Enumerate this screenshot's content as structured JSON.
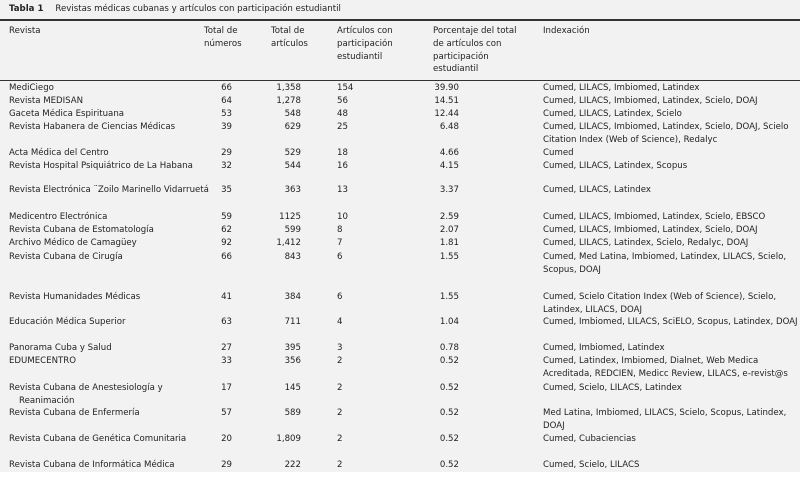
{
  "table": {
    "label": "Tabla 1",
    "caption": "Revistas médicas cubanas y artículos con participación estudiantil",
    "headers": {
      "revista": "Revista",
      "numeros": "Total de números",
      "articulos": "Total de artículos",
      "participacion": "Artículos con participación estudiantil",
      "porcentaje": "Porcentaje del total de artículos con participación estudiantil",
      "indexacion": "Indexación"
    },
    "rows": [
      {
        "revista": "MediCiego",
        "numeros": "66",
        "articulos": "1,358",
        "participacion": "154",
        "porcentaje": "39.90",
        "indexacion": "Cumed, LILACS, Imbiomed, Latindex"
      },
      {
        "revista": "Revista MEDISAN",
        "numeros": "64",
        "articulos": "1,278",
        "participacion": "56",
        "porcentaje": "14.51",
        "indexacion": "Cumed, LILACS, Imbiomed, Latindex, Scielo, DOAJ"
      },
      {
        "revista": "Gaceta Médica Espirituana",
        "numeros": "53",
        "articulos": "548",
        "participacion": "48",
        "porcentaje": "12.44",
        "indexacion": "Cumed, LILACS, Latindex, Scielo"
      },
      {
        "revista": "Revista Habanera de Ciencias Médicas",
        "numeros": "39",
        "articulos": "629",
        "participacion": "25",
        "porcentaje": "6.48",
        "indexacion": "Cumed, LILACS, Imbiomed, Latindex, Scielo, DOAJ, Scielo Citation Index (Web of Science), Redalyc"
      },
      {
        "revista": "Acta Médica del Centro",
        "numeros": "29",
        "articulos": "529",
        "participacion": "18",
        "porcentaje": "4.66",
        "indexacion": "Cumed"
      },
      {
        "revista": "Revista Hospital Psiquiátrico de La Habana",
        "numeros": "32",
        "articulos": "544",
        "participacion": "16",
        "porcentaje": "4.15",
        "indexacion": "Cumed, LILACS, Latindex, Scopus"
      },
      {
        "revista": "Revista Electrónica ¨Zoilo Marinello Vidarruetá",
        "numeros": "35",
        "articulos": "363",
        "participacion": "13",
        "porcentaje": "3.37",
        "indexacion": "Cumed, LILACS, Latindex"
      },
      {
        "revista": "Medicentro Electrónica",
        "numeros": "59",
        "articulos": "1125",
        "participacion": "10",
        "porcentaje": "2.59",
        "indexacion": "Cumed, LILACS, Imbiomed, Latindex, Scielo, EBSCO"
      },
      {
        "revista": "Revista Cubana de Estomatología",
        "numeros": "62",
        "articulos": "599",
        "participacion": "8",
        "porcentaje": "2.07",
        "indexacion": "Cumed, LILACS, Imbiomed, Latindex, Scielo, DOAJ"
      },
      {
        "revista": "Archivo Médico de Camagüey",
        "numeros": "92",
        "articulos": "1,412",
        "participacion": "7",
        "porcentaje": "1.81",
        "indexacion": "Cumed, LILACS, Latindex, Scielo, Redalyc, DOAJ"
      },
      {
        "revista": "Revista Cubana de Cirugía",
        "numeros": "66",
        "articulos": "843",
        "participacion": "6",
        "porcentaje": "1.55",
        "indexacion": "Cumed, Med Latina, Imbiomed, Latindex, LILACS, Scielo, Scopus, DOAJ"
      },
      {
        "revista": "Revista Humanidades Médicas",
        "numeros": "41",
        "articulos": "384",
        "participacion": "6",
        "porcentaje": "1.55",
        "indexacion": "Cumed, Scielo Citation Index (Web of Science), Scielo, Latindex, LILACS, DOAJ"
      },
      {
        "revista": "Educación Médica Superior",
        "numeros": "63",
        "articulos": "711",
        "participacion": "4",
        "porcentaje": "1.04",
        "indexacion": "Cumed, Imbiomed, LILACS, SciELO, Scopus, Latindex, DOAJ"
      },
      {
        "revista": "Panorama Cuba y Salud",
        "numeros": "27",
        "articulos": "395",
        "participacion": "3",
        "porcentaje": "0.78",
        "indexacion": "Cumed, Imbiomed, Latindex"
      },
      {
        "revista": "EDUMECENTRO",
        "numeros": "33",
        "articulos": "356",
        "participacion": "2",
        "porcentaje": "0.52",
        "indexacion": "Cumed, Latindex, Imbiomed, Dialnet, Web Medica Acreditada, REDCIEN, Medicc Review, LILACS, e-revist@s"
      },
      {
        "revista": "Revista Cubana de Anestesiología y Reanimación",
        "numeros": "17",
        "articulos": "145",
        "participacion": "2",
        "porcentaje": "0.52",
        "indexacion": "Cumed, Scielo, LILACS, Latindex"
      },
      {
        "revista": "Revista Cubana de Enfermería",
        "numeros": "57",
        "articulos": "589",
        "participacion": "2",
        "porcentaje": "0.52",
        "indexacion": "Med Latina, Imbiomed, LILACS, Scielo, Scopus, Latindex, DOAJ"
      },
      {
        "revista": "Revista Cubana de Genética Comunitaria",
        "numeros": "20",
        "articulos": "1,809",
        "participacion": "2",
        "porcentaje": "0.52",
        "indexacion": "Cumed, Cubaciencias"
      },
      {
        "revista": "Revista Cubana de Informática Médica",
        "numeros": "29",
        "articulos": "222",
        "participacion": "2",
        "porcentaje": "0.52",
        "indexacion": "Cumed, Scielo, LILACS"
      }
    ]
  }
}
